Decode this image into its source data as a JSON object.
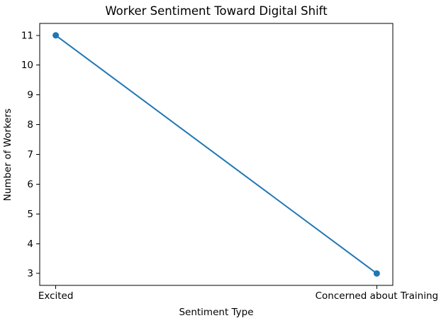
{
  "chart_data": {
    "type": "line",
    "title": "Worker Sentiment Toward Digital Shift",
    "xlabel": "Sentiment Type",
    "ylabel": "Number of Workers",
    "categories": [
      "Excited",
      "Concerned about Training"
    ],
    "values": [
      11,
      3
    ],
    "yticks": [
      3,
      4,
      5,
      6,
      7,
      8,
      9,
      10,
      11
    ],
    "ylim": [
      2.6,
      11.4
    ],
    "xlim": [
      -0.05,
      1.05
    ],
    "line_color": "#1f77b4",
    "marker": "circle",
    "grid": false,
    "legend_position": "none",
    "background_color": "#ffffff",
    "spine_color": "#000000"
  }
}
